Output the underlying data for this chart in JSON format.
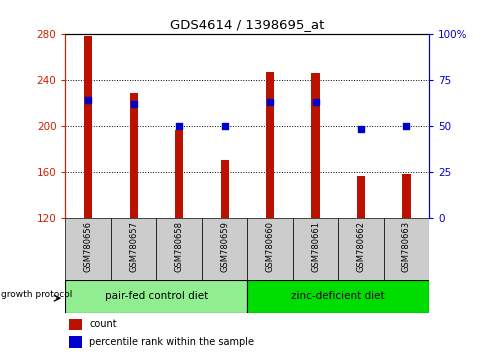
{
  "title": "GDS4614 / 1398695_at",
  "samples": [
    "GSM780656",
    "GSM780657",
    "GSM780658",
    "GSM780659",
    "GSM780660",
    "GSM780661",
    "GSM780662",
    "GSM780663"
  ],
  "counts": [
    278,
    228,
    196,
    170,
    247,
    246,
    156,
    158
  ],
  "percentile_ranks": [
    64,
    62,
    50,
    50,
    63,
    63,
    48,
    50
  ],
  "ylim_left": [
    120,
    280
  ],
  "ylim_right": [
    0,
    100
  ],
  "yticks_left": [
    120,
    160,
    200,
    240,
    280
  ],
  "yticks_right": [
    0,
    25,
    50,
    75,
    100
  ],
  "ytick_labels_right": [
    "0",
    "25",
    "50",
    "75",
    "100%"
  ],
  "groups": [
    {
      "label": "pair-fed control diet",
      "indices": [
        0,
        1,
        2,
        3
      ],
      "color": "#90ee90"
    },
    {
      "label": "zinc-deficient diet",
      "indices": [
        4,
        5,
        6,
        7
      ],
      "color": "#00dd00"
    }
  ],
  "group_header": "growth protocol",
  "bar_color": "#bb1100",
  "dot_color": "#0000cc",
  "bar_width": 0.18,
  "grid_color": "#000000",
  "axis_color_left": "#cc2200",
  "axis_color_right": "#0000cc",
  "tick_area_bg": "#cccccc",
  "legend_items": [
    {
      "label": "count",
      "color": "#bb1100"
    },
    {
      "label": "percentile rank within the sample",
      "color": "#0000cc"
    }
  ]
}
